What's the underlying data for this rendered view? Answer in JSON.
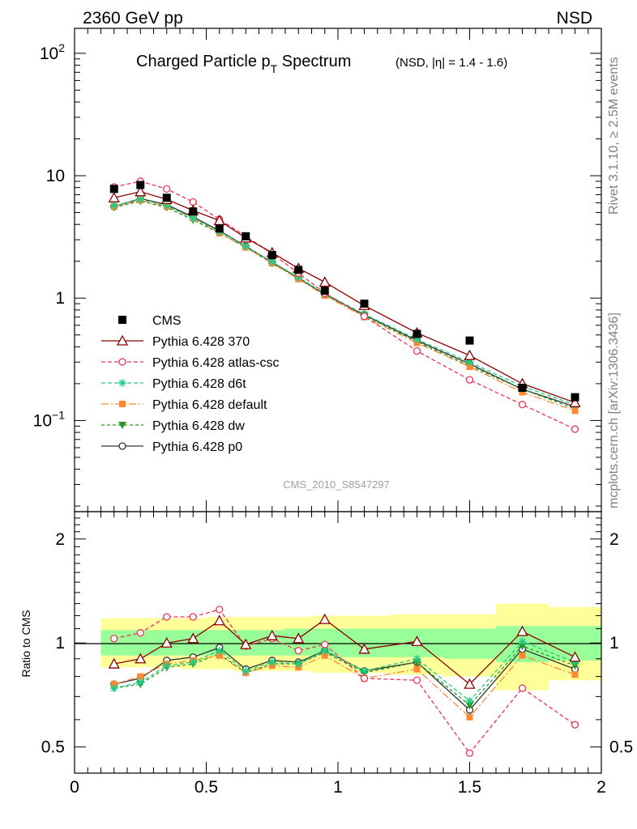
{
  "header": {
    "left": "2360 GeV pp",
    "right": "NSD"
  },
  "title": {
    "main_pre": "Charged Particle p",
    "main_sub": "T",
    "main_post": " Spectrum",
    "small": "(NSD, |η| = 1.4 - 1.6)"
  },
  "side_text": {
    "rivet": "Rivet 3.1.10, ≥ 2.5M events",
    "mcplots": "mcplots.cern.ch [arXiv:1306.3436]"
  },
  "watermark": "CMS_2010_S8547297",
  "colors": {
    "cms": "#000000",
    "p370": "#8b0000",
    "atlas": "#ee3355",
    "d6t": "#22cc88",
    "default": "#ff8833",
    "dw": "#229922",
    "p0": "#333333",
    "band_yellow": "#ffff99",
    "band_green": "#99ff99"
  },
  "chart_data": [
    {
      "type": "scatter",
      "title": "Charged Particle pT Spectrum (NSD, |η| = 1.4 - 1.6)",
      "xlim": [
        0,
        2
      ],
      "ylim": [
        0.018,
        160
      ],
      "yscale": "log",
      "y_ticks": [
        {
          "value": 100,
          "label": "10",
          "sup": "2"
        },
        {
          "value": 10,
          "label": "10",
          "sup": ""
        },
        {
          "value": 1,
          "label": "1",
          "sup": ""
        },
        {
          "value": 0.1,
          "label": "10",
          "sup": "−1"
        }
      ],
      "legend_position": "bottom-left",
      "x": [
        0.15,
        0.25,
        0.35,
        0.45,
        0.55,
        0.65,
        0.75,
        0.85,
        0.95,
        1.1,
        1.3,
        1.5,
        1.7,
        1.9
      ],
      "series": [
        {
          "name": "CMS",
          "key": "cms",
          "marker": "square",
          "dash": "none",
          "values": [
            7.8,
            8.4,
            6.6,
            5.1,
            3.7,
            3.2,
            2.25,
            1.7,
            1.15,
            0.9,
            0.51,
            0.45,
            0.185,
            0.155
          ]
        },
        {
          "name": "Pythia 6.428 370",
          "key": "p370",
          "marker": "triangle-open",
          "dash": "none",
          "values": [
            6.6,
            7.4,
            6.4,
            5.2,
            4.3,
            3.1,
            2.35,
            1.75,
            1.35,
            0.87,
            0.52,
            0.34,
            0.2,
            0.14
          ]
        },
        {
          "name": "Pythia 6.428 atlas-csc",
          "key": "atlas",
          "marker": "circle-open",
          "dash": "5,3",
          "values": [
            8.1,
            9.0,
            7.8,
            6.1,
            4.4,
            3.2,
            2.3,
            1.6,
            1.1,
            0.71,
            0.37,
            0.215,
            0.135,
            0.085
          ]
        },
        {
          "name": "Pythia 6.428 d6t",
          "key": "d6t",
          "marker": "star",
          "dash": "5,3",
          "values": [
            5.7,
            6.4,
            5.7,
            4.5,
            3.5,
            2.65,
            1.98,
            1.48,
            1.09,
            0.74,
            0.46,
            0.3,
            0.19,
            0.135
          ]
        },
        {
          "name": "Pythia 6.428 default",
          "key": "default",
          "marker": "square-small",
          "dash": "9,3,2,3",
          "values": [
            5.6,
            6.3,
            5.6,
            4.5,
            3.4,
            2.6,
            1.93,
            1.43,
            1.05,
            0.7,
            0.43,
            0.275,
            0.17,
            0.12
          ]
        },
        {
          "name": "Pythia 6.428 dw",
          "key": "dw",
          "marker": "triangle-down",
          "dash": "4,3",
          "values": [
            5.5,
            6.2,
            5.5,
            4.35,
            3.4,
            2.6,
            1.92,
            1.45,
            1.07,
            0.72,
            0.44,
            0.28,
            0.18,
            0.125
          ]
        },
        {
          "name": "Pythia 6.428 p0",
          "key": "p0",
          "marker": "circle-open",
          "dash": "none",
          "values": [
            5.6,
            6.5,
            5.8,
            4.6,
            3.55,
            2.65,
            1.96,
            1.46,
            1.07,
            0.73,
            0.45,
            0.29,
            0.18,
            0.13
          ]
        }
      ]
    },
    {
      "type": "line",
      "ylabel": "Ratio to CMS",
      "xlim": [
        0,
        2
      ],
      "ylim": [
        0.42,
        2.4
      ],
      "yscale": "log",
      "y_ticks": [
        {
          "value": 2,
          "label": "2"
        },
        {
          "value": 1,
          "label": "1"
        },
        {
          "value": 0.5,
          "label": "0.5"
        }
      ],
      "x_ticks": [
        {
          "value": 0,
          "label": "0"
        },
        {
          "value": 0.5,
          "label": "0.5"
        },
        {
          "value": 1,
          "label": "1"
        },
        {
          "value": 1.5,
          "label": "1.5"
        },
        {
          "value": 2,
          "label": "2"
        }
      ],
      "bands": [
        {
          "x0": 0.1,
          "x1": 0.2,
          "yellow": [
            0.85,
            1.18
          ],
          "green": [
            0.92,
            1.09
          ]
        },
        {
          "x0": 0.2,
          "x1": 0.3,
          "yellow": [
            0.85,
            1.18
          ],
          "green": [
            0.92,
            1.09
          ]
        },
        {
          "x0": 0.3,
          "x1": 0.4,
          "yellow": [
            0.85,
            1.18
          ],
          "green": [
            0.92,
            1.09
          ]
        },
        {
          "x0": 0.4,
          "x1": 0.5,
          "yellow": [
            0.84,
            1.18
          ],
          "green": [
            0.92,
            1.09
          ]
        },
        {
          "x0": 0.5,
          "x1": 0.6,
          "yellow": [
            0.84,
            1.19
          ],
          "green": [
            0.92,
            1.09
          ]
        },
        {
          "x0": 0.6,
          "x1": 0.7,
          "yellow": [
            0.83,
            1.19
          ],
          "green": [
            0.92,
            1.09
          ]
        },
        {
          "x0": 0.7,
          "x1": 0.8,
          "yellow": [
            0.83,
            1.19
          ],
          "green": [
            0.92,
            1.09
          ]
        },
        {
          "x0": 0.8,
          "x1": 0.9,
          "yellow": [
            0.83,
            1.19
          ],
          "green": [
            0.92,
            1.1
          ]
        },
        {
          "x0": 0.9,
          "x1": 1.0,
          "yellow": [
            0.82,
            1.2
          ],
          "green": [
            0.92,
            1.1
          ]
        },
        {
          "x0": 1.0,
          "x1": 1.2,
          "yellow": [
            0.82,
            1.2
          ],
          "green": [
            0.91,
            1.1
          ]
        },
        {
          "x0": 1.2,
          "x1": 1.4,
          "yellow": [
            0.81,
            1.21
          ],
          "green": [
            0.91,
            1.1
          ]
        },
        {
          "x0": 1.4,
          "x1": 1.6,
          "yellow": [
            0.8,
            1.21
          ],
          "green": [
            0.9,
            1.1
          ]
        },
        {
          "x0": 1.6,
          "x1": 1.8,
          "yellow": [
            0.73,
            1.3
          ],
          "green": [
            0.88,
            1.12
          ]
        },
        {
          "x0": 1.8,
          "x1": 2.0,
          "yellow": [
            0.78,
            1.27
          ],
          "green": [
            0.89,
            1.12
          ]
        }
      ],
      "x": [
        0.15,
        0.25,
        0.35,
        0.45,
        0.55,
        0.65,
        0.75,
        0.85,
        0.95,
        1.1,
        1.3,
        1.5,
        1.7,
        1.9
      ],
      "series": [
        {
          "name": "Pythia 6.428 370",
          "key": "p370",
          "marker": "triangle-open",
          "dash": "none",
          "values": [
            0.87,
            0.9,
            1.0,
            1.03,
            1.16,
            0.99,
            1.05,
            1.03,
            1.17,
            0.96,
            1.01,
            0.76,
            1.08,
            0.91
          ]
        },
        {
          "name": "Pythia 6.428 atlas-csc",
          "key": "atlas",
          "marker": "circle-open",
          "dash": "5,3",
          "values": [
            1.03,
            1.07,
            1.19,
            1.19,
            1.25,
            0.98,
            1.03,
            0.95,
            0.99,
            0.79,
            0.78,
            0.48,
            0.74,
            0.58
          ]
        },
        {
          "name": "Pythia 6.428 d6t",
          "key": "d6t",
          "marker": "star",
          "dash": "5,3",
          "values": [
            0.74,
            0.77,
            0.86,
            0.88,
            0.95,
            0.83,
            0.88,
            0.87,
            0.95,
            0.83,
            0.9,
            0.68,
            1.01,
            0.88
          ]
        },
        {
          "name": "Pythia 6.428 default",
          "key": "default",
          "marker": "square-small",
          "dash": "9,3,2,3",
          "values": [
            0.76,
            0.8,
            0.87,
            0.89,
            0.92,
            0.82,
            0.86,
            0.85,
            0.92,
            0.79,
            0.84,
            0.61,
            0.92,
            0.81
          ]
        },
        {
          "name": "Pythia 6.428 dw",
          "key": "dw",
          "marker": "triangle-down",
          "dash": "4,3",
          "values": [
            0.74,
            0.76,
            0.85,
            0.87,
            0.93,
            0.82,
            0.87,
            0.87,
            0.94,
            0.82,
            0.88,
            0.66,
            0.98,
            0.86
          ]
        },
        {
          "name": "Pythia 6.428 p0",
          "key": "p0",
          "marker": "circle-open",
          "dash": "none",
          "values": [
            0.76,
            0.79,
            0.89,
            0.91,
            0.97,
            0.84,
            0.89,
            0.88,
            0.95,
            0.83,
            0.88,
            0.64,
            0.96,
            0.84
          ]
        }
      ]
    }
  ]
}
